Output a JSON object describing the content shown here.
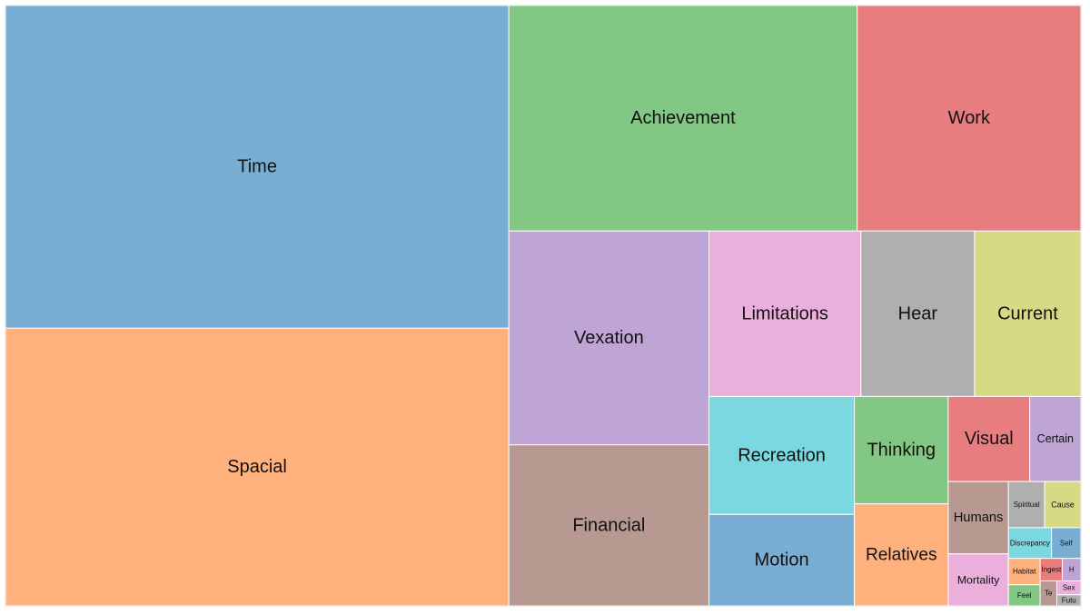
{
  "chart_data": {
    "type": "treemap",
    "items": [
      {
        "name": "Time",
        "value": 19433,
        "color": "#7aadd3"
      },
      {
        "name": "Spacial",
        "value": 16720,
        "color": "#feb17c"
      },
      {
        "name": "Achievement",
        "value": 9398,
        "color": "#83c785"
      },
      {
        "name": "Work",
        "value": 6037,
        "color": "#e77d7f"
      },
      {
        "name": "Vexation",
        "value": 5117,
        "color": "#bfa4d6"
      },
      {
        "name": "Financial",
        "value": 3855,
        "color": "#b89992"
      },
      {
        "name": "Limitations",
        "value": 3006,
        "color": "#ebafdc"
      },
      {
        "name": "Hear",
        "value": 2248,
        "color": "#afafaf"
      },
      {
        "name": "Current",
        "value": 2104,
        "color": "#d7d984"
      },
      {
        "name": "Recreation",
        "value": 2053,
        "color": "#7bd7e0"
      },
      {
        "name": "Motion",
        "value": 1591,
        "color": "#7aadd3"
      },
      {
        "name": "Relatives",
        "value": 1145,
        "color": "#feb17c"
      },
      {
        "name": "Thinking",
        "value": 1206,
        "color": "#83c785"
      },
      {
        "name": "Visual",
        "value": 830,
        "color": "#e77d7f"
      },
      {
        "name": "Certain",
        "value": 521,
        "color": "#bfa4d6"
      },
      {
        "name": "Humans",
        "value": 521,
        "color": "#b89992"
      },
      {
        "name": "Mortality",
        "value": 375,
        "color": "#ebafdc"
      },
      {
        "name": "Spiritual",
        "value": 200,
        "color": "#afafaf"
      },
      {
        "name": "Cause",
        "value": 200,
        "color": "#d7d984"
      },
      {
        "name": "Discrepancy",
        "value": 158,
        "color": "#7bd7e0"
      },
      {
        "name": "Self",
        "value": 108,
        "color": "#7aadd3"
      },
      {
        "name": "Habitat",
        "value": 100,
        "color": "#feb17c"
      },
      {
        "name": "Feel",
        "value": 80,
        "color": "#83c785"
      },
      {
        "name": "Ingest",
        "value": 60,
        "color": "#e77d7f"
      },
      {
        "name": "H",
        "value": 50,
        "color": "#bfa4d6"
      },
      {
        "name": "Te",
        "value": 50,
        "color": "#b89992"
      },
      {
        "name": "Sex",
        "value": 40,
        "color": "#ebafdc"
      },
      {
        "name": "Futu",
        "value": 32,
        "color": "#afafaf"
      }
    ]
  }
}
